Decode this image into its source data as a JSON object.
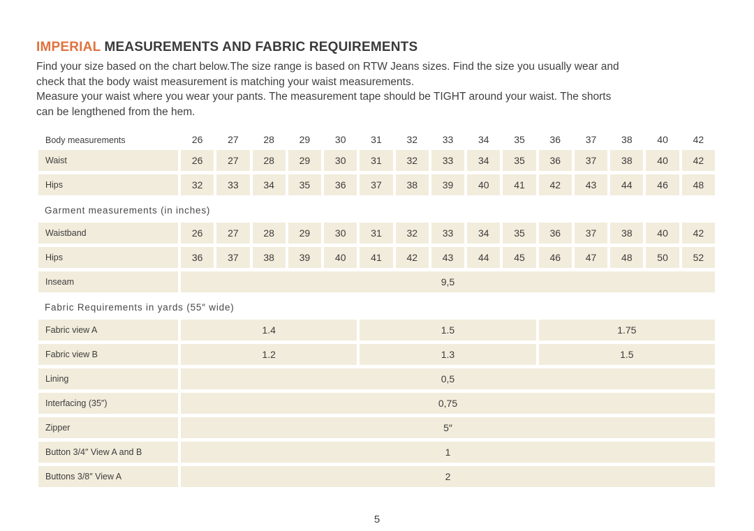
{
  "header": {
    "title_accent": "IMPERIAL",
    "title_rest": " MEASUREMENTS AND FABRIC REQUIREMENTS",
    "intro_lines": [
      "Find your size based on the chart below.The size range is based on RTW Jeans sizes. Find the size you usually wear and",
      "check that the body waist measurement is matching your waist measurements.",
      "Measure your waist where you wear your pants. The measurement tape should be TIGHT around your waist. The shorts",
      "can be lengthened from the hem."
    ]
  },
  "body_table": {
    "header_label": "Body measurements",
    "sizes": [
      "26",
      "27",
      "28",
      "29",
      "30",
      "31",
      "32",
      "33",
      "34",
      "35",
      "36",
      "37",
      "38",
      "40",
      "42"
    ],
    "rows": [
      {
        "label": "Waist",
        "values": [
          "26",
          "27",
          "28",
          "29",
          "30",
          "31",
          "32",
          "33",
          "34",
          "35",
          "36",
          "37",
          "38",
          "40",
          "42"
        ]
      },
      {
        "label": "Hips",
        "values": [
          "32",
          "33",
          "34",
          "35",
          "36",
          "37",
          "38",
          "39",
          "40",
          "41",
          "42",
          "43",
          "44",
          "46",
          "48"
        ]
      }
    ]
  },
  "garment_table": {
    "section_title": "Garment measurements (in inches)",
    "rows": [
      {
        "label": "Waistband",
        "values": [
          "26",
          "27",
          "28",
          "29",
          "30",
          "31",
          "32",
          "33",
          "34",
          "35",
          "36",
          "37",
          "38",
          "40",
          "42"
        ]
      },
      {
        "label": "Hips",
        "values": [
          "36",
          "37",
          "38",
          "39",
          "40",
          "41",
          "42",
          "43",
          "44",
          "45",
          "46",
          "47",
          "48",
          "50",
          "52"
        ]
      }
    ],
    "merged_rows": [
      {
        "label": "Inseam",
        "value": "9,5"
      }
    ]
  },
  "fabric_table": {
    "section_title": "Fabric Requirements in yards (55″ wide)",
    "three_col_rows": [
      {
        "label": "Fabric view A",
        "values": [
          "1.4",
          "1.5",
          "1.75"
        ]
      },
      {
        "label": "Fabric view B",
        "values": [
          "1.2",
          "1.3",
          "1.5"
        ]
      }
    ],
    "full_rows": [
      {
        "label": "Lining",
        "value": "0,5"
      },
      {
        "label": "Interfacing (35″)",
        "value": "0,75"
      },
      {
        "label": "Zipper",
        "value": "5″"
      },
      {
        "label": "Button 3/4″ View A and B",
        "value": "1"
      },
      {
        "label": "Buttons 3/8″  View A",
        "value": "2"
      }
    ]
  },
  "footer": {
    "page_number": "5"
  },
  "colors": {
    "accent": "#E0713C",
    "cell_background": "#F2ECDC",
    "text": "#3B3B3B"
  }
}
